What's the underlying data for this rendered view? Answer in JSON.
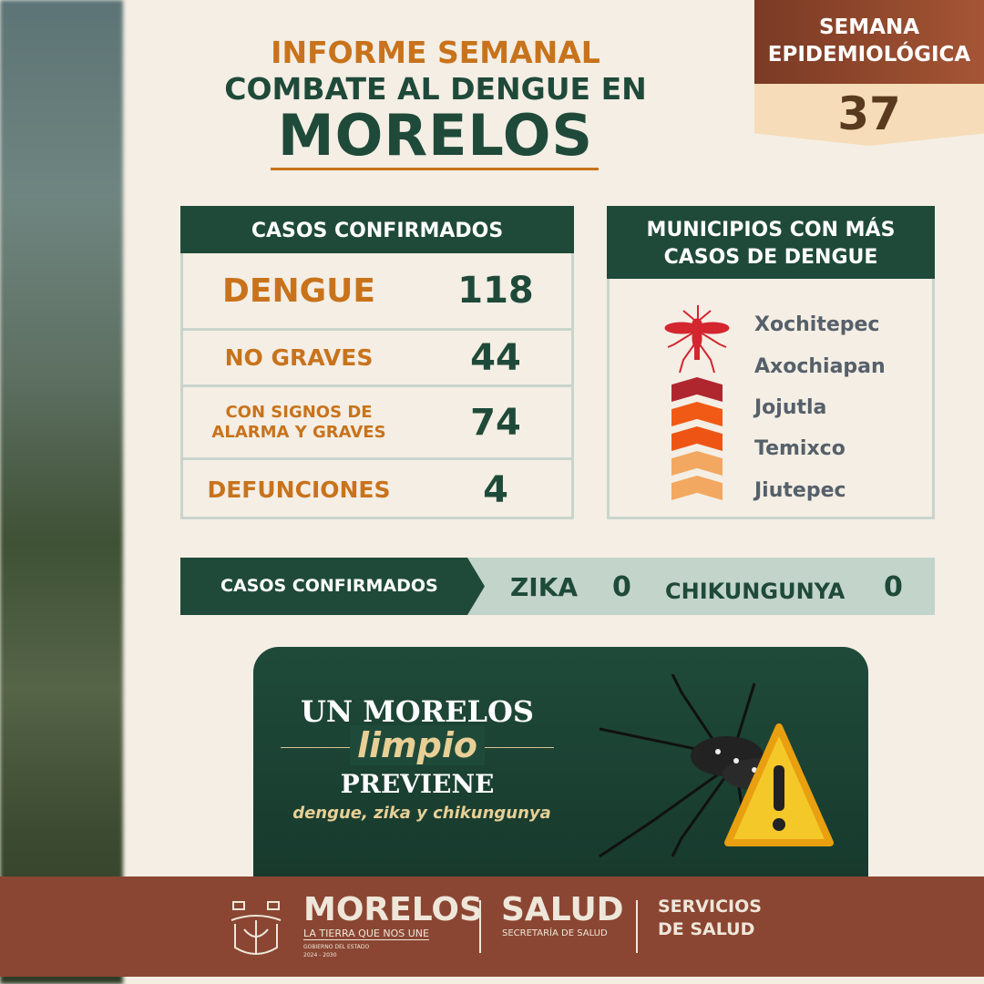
{
  "header": {
    "line1": "INFORME SEMANAL",
    "line2": "COMBATE AL DENGUE EN",
    "line3": "MORELOS"
  },
  "week": {
    "label1": "SEMANA",
    "label2": "EPIDEMIOLÓGICA",
    "number": "37"
  },
  "cases": {
    "title": "CASOS CONFIRMADOS",
    "rows": [
      {
        "label": "DENGUE",
        "value": "118"
      },
      {
        "label": "NO GRAVES",
        "value": "44"
      },
      {
        "label": "CON SIGNOS DE ALARMA Y GRAVES",
        "value": "74"
      },
      {
        "label": "DEFUNCIONES",
        "value": "4"
      }
    ]
  },
  "municipalities": {
    "title1": "MUNICIPIOS CON MÁS",
    "title2": "CASOS DE DENGUE",
    "items": [
      "Xochitepec",
      "Axochiapan",
      "Jojutla",
      "Temixco",
      "Jiutepec"
    ],
    "colors": [
      "#b0262f",
      "#f05a14",
      "#ee5514",
      "#f2a860",
      "#f2a860"
    ]
  },
  "other_cases": {
    "label": "CASOS CONFIRMADOS",
    "zika_label": "ZIKA",
    "zika_value": "0",
    "chik_label": "CHIKUNGUNYA",
    "chik_value": "0"
  },
  "promo": {
    "line1": "UN MORELOS",
    "line2": "limpio",
    "line3": "PREVIENE",
    "line4": "dengue, zika y chikungunya"
  },
  "footer": {
    "morelos": "MORELOS",
    "tagline": "LA TIERRA QUE NOS UNE",
    "gov": "GOBIERNO DEL ESTADO",
    "years": "2024 - 2030",
    "salud": "SALUD",
    "secretaria": "SECRETARÍA DE SALUD",
    "servicios1": "SERVICIOS",
    "servicios2": "DE SALUD"
  }
}
